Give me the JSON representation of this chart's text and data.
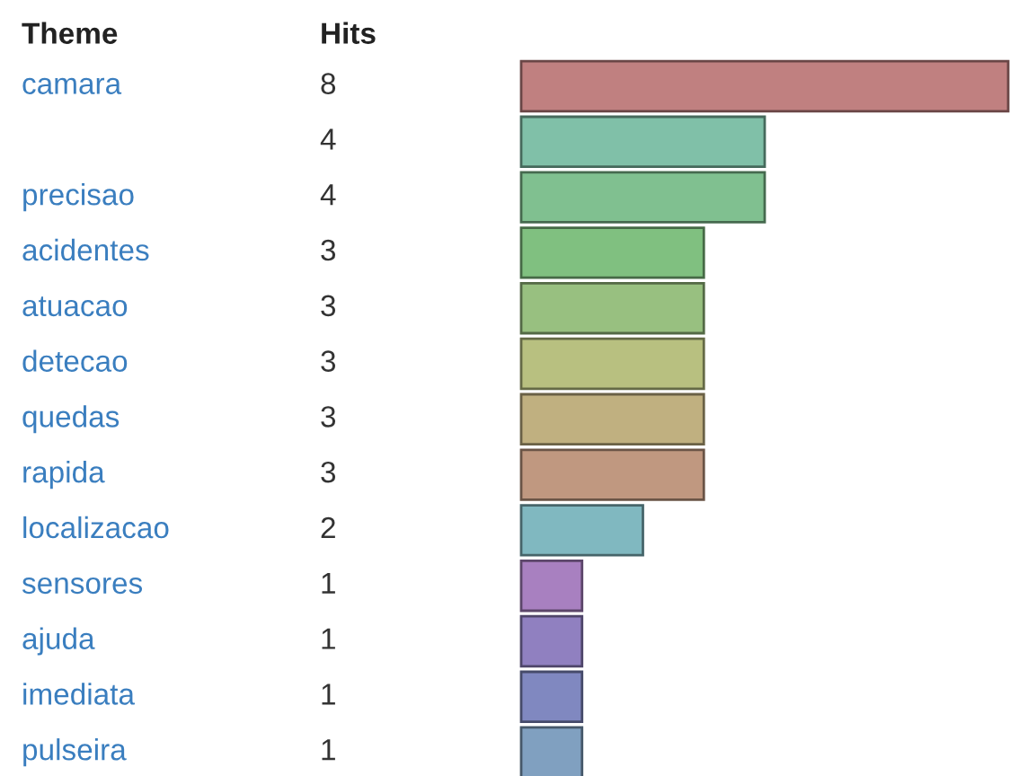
{
  "chart_data": {
    "type": "bar",
    "orientation": "horizontal",
    "data_labels": true,
    "xlabel": "Hits",
    "ylabel": "Theme",
    "categories": [
      "camara",
      null,
      "precisao",
      "acidentes",
      "atuacao",
      "detecao",
      "quedas",
      "rapida",
      "localizacao",
      "sensores",
      "ajuda",
      "imediata",
      "pulseira"
    ],
    "values": [
      8,
      4,
      4,
      3,
      3,
      3,
      3,
      3,
      2,
      1,
      1,
      1,
      1
    ],
    "colors": [
      "#c08080",
      "#80c0a8",
      "#80c090",
      "#80c080",
      "#98c080",
      "#b8c080",
      "#c0b080",
      "#c09880",
      "#80b8c0",
      "#a880c0",
      "#9080c0",
      "#8088c0",
      "#80a0c0"
    ]
  }
}
